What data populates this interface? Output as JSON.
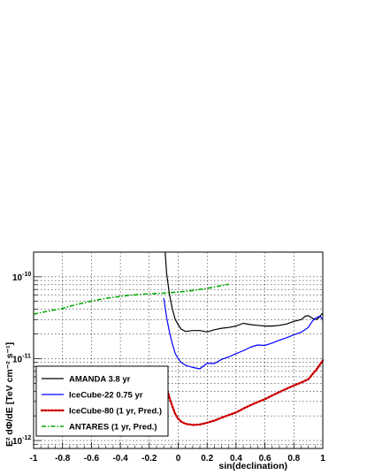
{
  "chart_data": {
    "type": "line",
    "title": "",
    "xlabel": "sin(declination)",
    "ylabel": "E² dΦ/dE [TeV cm⁻² s⁻¹]",
    "xlim": [
      -1,
      1
    ],
    "ylim": [
      8e-13,
      2e-10
    ],
    "yscale": "log",
    "grid": true,
    "legend_position": "bottom-left",
    "x_ticks": [
      "-1",
      "-0.8",
      "-0.6",
      "-0.4",
      "-0.2",
      "0",
      "0.2",
      "0.4",
      "0.6",
      "0.8",
      "1"
    ],
    "y_ticks": [
      {
        "value": 1e-12,
        "mantissa": "10",
        "exponent": "-12"
      },
      {
        "value": 1e-11,
        "mantissa": "10",
        "exponent": "-11"
      },
      {
        "value": 1e-10,
        "mantissa": "10",
        "exponent": "-10"
      }
    ],
    "series": [
      {
        "name": "AMANDA  3.8 yr",
        "color": "#000000",
        "style": "solid",
        "x": [
          -0.09,
          -0.08,
          -0.06,
          -0.04,
          -0.02,
          0.0,
          0.02,
          0.05,
          0.1,
          0.15,
          0.2,
          0.25,
          0.3,
          0.35,
          0.4,
          0.45,
          0.5,
          0.55,
          0.6,
          0.65,
          0.7,
          0.75,
          0.8,
          0.85,
          0.88,
          0.9,
          0.93,
          0.96,
          1.0
        ],
        "y": [
          2e-10,
          1.1e-10,
          6e-11,
          4e-11,
          3e-11,
          2.6e-11,
          2.3e-11,
          2.15e-11,
          2.2e-11,
          2.2e-11,
          2.12e-11,
          2.25e-11,
          2.35e-11,
          2.4e-11,
          2.5e-11,
          2.7e-11,
          2.6e-11,
          2.55e-11,
          2.5e-11,
          2.5e-11,
          2.55e-11,
          2.65e-11,
          2.85e-11,
          3e-11,
          3.3e-11,
          3.35e-11,
          3.1e-11,
          3e-11,
          3.6e-11
        ]
      },
      {
        "name": "IceCube-22   0.75 yr",
        "color": "#0000ff",
        "style": "solid",
        "x": [
          -0.1,
          -0.08,
          -0.06,
          -0.04,
          -0.02,
          0.0,
          0.02,
          0.05,
          0.1,
          0.15,
          0.2,
          0.25,
          0.3,
          0.35,
          0.4,
          0.45,
          0.5,
          0.55,
          0.6,
          0.65,
          0.7,
          0.75,
          0.8,
          0.85,
          0.9,
          0.93,
          0.96,
          0.98,
          1.0
        ],
        "y": [
          5.5e-11,
          3.2e-11,
          2.1e-11,
          1.5e-11,
          1.15e-11,
          1e-11,
          9e-12,
          8.3e-12,
          7.8e-12,
          7.5e-12,
          8.8e-12,
          8.7e-12,
          9.8e-12,
          1.05e-11,
          1.15e-11,
          1.25e-11,
          1.38e-11,
          1.47e-11,
          1.45e-11,
          1.55e-11,
          1.68e-11,
          1.8e-11,
          1.95e-11,
          2.1e-11,
          2.4e-11,
          2.9e-11,
          3.2e-11,
          3.3e-11,
          3e-11
        ]
      },
      {
        "name": "IceCube-80 (1 yr, Pred.)",
        "color": "#cc0000",
        "style": "dotted",
        "x": [
          -0.08,
          -0.06,
          -0.04,
          -0.02,
          0.0,
          0.02,
          0.05,
          0.1,
          0.15,
          0.2,
          0.25,
          0.3,
          0.35,
          0.4,
          0.45,
          0.5,
          0.55,
          0.6,
          0.65,
          0.7,
          0.75,
          0.8,
          0.85,
          0.9,
          0.93,
          0.96,
          1.0
        ],
        "y": [
          4.5e-12,
          3.3e-12,
          2.6e-12,
          2.1e-12,
          1.85e-12,
          1.7e-12,
          1.6e-12,
          1.55e-12,
          1.57e-12,
          1.65e-12,
          1.75e-12,
          1.9e-12,
          2.05e-12,
          2.2e-12,
          2.45e-12,
          2.7e-12,
          2.95e-12,
          3.2e-12,
          3.55e-12,
          3.9e-12,
          4.3e-12,
          4.7e-12,
          5.1e-12,
          5.6e-12,
          6.5e-12,
          7.5e-12,
          9.5e-12
        ]
      },
      {
        "name": "ANTARES (1 yr, Pred.)",
        "color": "#00aa00",
        "style": "dash-dot",
        "x": [
          -1.0,
          -0.95,
          -0.9,
          -0.85,
          -0.8,
          -0.75,
          -0.7,
          -0.65,
          -0.6,
          -0.55,
          -0.5,
          -0.45,
          -0.4,
          -0.35,
          -0.3,
          -0.25,
          -0.2,
          -0.15,
          -0.1,
          -0.05,
          0.0,
          0.05,
          0.1,
          0.15,
          0.2,
          0.25,
          0.3,
          0.35
        ],
        "y": [
          3.5e-11,
          3.65e-11,
          3.8e-11,
          3.95e-11,
          4.1e-11,
          4.35e-11,
          4.6e-11,
          4.8e-11,
          5.05e-11,
          5.25e-11,
          5.45e-11,
          5.6e-11,
          5.75e-11,
          5.9e-11,
          6e-11,
          6.1e-11,
          6.2e-11,
          6.25e-11,
          6.3e-11,
          6.4e-11,
          6.5e-11,
          6.65e-11,
          6.8e-11,
          7e-11,
          7.2e-11,
          7.5e-11,
          7.8e-11,
          8.1e-11
        ]
      }
    ]
  }
}
